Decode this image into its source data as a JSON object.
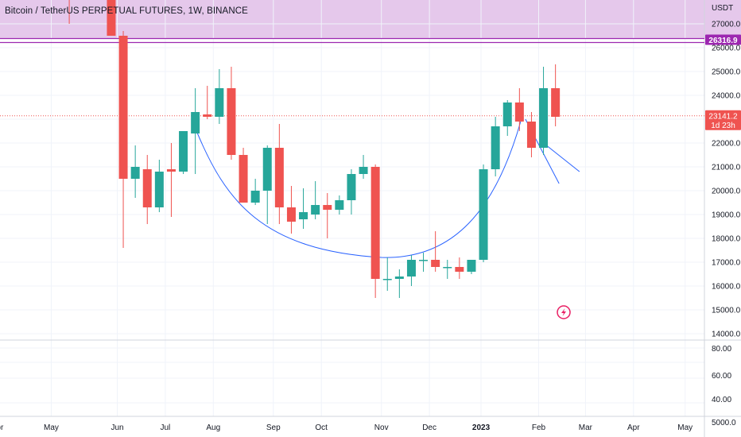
{
  "chart_data": {
    "type": "candlestick",
    "title": "Bitcoin / TetherUS PERPETUAL FUTURES, 1W, BINANCE",
    "currency_label": "USDT",
    "price_axis_ticks": [
      27000,
      26000,
      25000,
      24000,
      23000,
      22000,
      21000,
      20000,
      19000,
      18000,
      17000,
      16000,
      15000,
      14000
    ],
    "price_axis_tick_labels": [
      "27000.0",
      "26000.0",
      "25000.0",
      "24000.0",
      "23000.0",
      "22000.0",
      "21000.0",
      "20000.0",
      "19000.0",
      "18000.0",
      "17000.0",
      "16000.0",
      "15000.0",
      "14000.0"
    ],
    "ylim": [
      13700,
      28200
    ],
    "indicator_axis_ticks": [
      "80.00",
      "60.00",
      "40.00",
      "5000.0"
    ],
    "x_axis_labels": [
      {
        "label": "Apr",
        "week": -10
      },
      {
        "label": "May",
        "week": -5.5
      },
      {
        "label": "Jun",
        "week": 0
      },
      {
        "label": "Jul",
        "week": 4
      },
      {
        "label": "Aug",
        "week": 8
      },
      {
        "label": "Sep",
        "week": 13
      },
      {
        "label": "Oct",
        "week": 17
      },
      {
        "label": "Nov",
        "week": 22
      },
      {
        "label": "Dec",
        "week": 26
      },
      {
        "label": "2023",
        "week": 30.3,
        "bold": true
      },
      {
        "label": "Feb",
        "week": 35.1
      },
      {
        "label": "Mar",
        "week": 39
      },
      {
        "label": "Apr",
        "week": 43
      },
      {
        "label": "May",
        "week": 47.3
      }
    ],
    "candles": [
      {
        "week": -4,
        "open": 29500,
        "high": 29700,
        "low": 27000,
        "close": 28500
      },
      {
        "week": -0.5,
        "open": 31500,
        "high": 31800,
        "low": 26500,
        "close": 26500
      },
      {
        "week": 0.5,
        "open": 26500,
        "high": 26700,
        "low": 17600,
        "close": 20500
      },
      {
        "week": 1.5,
        "open": 20500,
        "high": 21900,
        "low": 19700,
        "close": 21000
      },
      {
        "week": 2.5,
        "open": 20900,
        "high": 21500,
        "low": 18600,
        "close": 19300
      },
      {
        "week": 3.5,
        "open": 19300,
        "high": 21300,
        "low": 19100,
        "close": 20800
      },
      {
        "week": 4.5,
        "open": 20900,
        "high": 22000,
        "low": 18900,
        "close": 20800
      },
      {
        "week": 5.5,
        "open": 20800,
        "high": 22500,
        "low": 20700,
        "close": 22500
      },
      {
        "week": 6.5,
        "open": 22400,
        "high": 24300,
        "low": 20700,
        "close": 23300
      },
      {
        "week": 7.5,
        "open": 23200,
        "high": 24400,
        "low": 23000,
        "close": 23100
      },
      {
        "week": 8.5,
        "open": 23100,
        "high": 25100,
        "low": 22800,
        "close": 24300
      },
      {
        "week": 9.5,
        "open": 24300,
        "high": 25200,
        "low": 21300,
        "close": 21500
      },
      {
        "week": 10.5,
        "open": 21500,
        "high": 21800,
        "low": 19500,
        "close": 19500
      },
      {
        "week": 11.5,
        "open": 19500,
        "high": 20500,
        "low": 19400,
        "close": 20000
      },
      {
        "week": 12.5,
        "open": 20000,
        "high": 21900,
        "low": 18600,
        "close": 21800
      },
      {
        "week": 13.5,
        "open": 21800,
        "high": 22800,
        "low": 18600,
        "close": 19300
      },
      {
        "week": 14.5,
        "open": 19300,
        "high": 20200,
        "low": 18200,
        "close": 18700
      },
      {
        "week": 15.5,
        "open": 18800,
        "high": 20100,
        "low": 18400,
        "close": 19100
      },
      {
        "week": 16.5,
        "open": 19000,
        "high": 20400,
        "low": 18800,
        "close": 19400
      },
      {
        "week": 17.5,
        "open": 19400,
        "high": 19900,
        "low": 18000,
        "close": 19200
      },
      {
        "week": 18.5,
        "open": 19200,
        "high": 19800,
        "low": 19000,
        "close": 19600
      },
      {
        "week": 19.5,
        "open": 19600,
        "high": 20900,
        "low": 19000,
        "close": 20700
      },
      {
        "week": 20.5,
        "open": 20700,
        "high": 21500,
        "low": 20500,
        "close": 21000
      },
      {
        "week": 21.5,
        "open": 21000,
        "high": 21100,
        "low": 15500,
        "close": 16300
      },
      {
        "week": 22.5,
        "open": 16300,
        "high": 17200,
        "low": 15800,
        "close": 16300
      },
      {
        "week": 23.5,
        "open": 16300,
        "high": 16700,
        "low": 15500,
        "close": 16400
      },
      {
        "week": 24.5,
        "open": 16400,
        "high": 17300,
        "low": 16000,
        "close": 17100
      },
      {
        "week": 25.5,
        "open": 17100,
        "high": 17400,
        "low": 16600,
        "close": 17100
      },
      {
        "week": 26.5,
        "open": 17100,
        "high": 18300,
        "low": 16600,
        "close": 16800
      },
      {
        "week": 27.5,
        "open": 16800,
        "high": 17100,
        "low": 16300,
        "close": 16800
      },
      {
        "week": 28.5,
        "open": 16800,
        "high": 17200,
        "low": 16300,
        "close": 16600
      },
      {
        "week": 29.5,
        "open": 16600,
        "high": 17100,
        "low": 16500,
        "close": 17100
      },
      {
        "week": 30.5,
        "open": 17100,
        "high": 21100,
        "low": 17000,
        "close": 20900
      },
      {
        "week": 31.5,
        "open": 20900,
        "high": 23100,
        "low": 20600,
        "close": 22700
      },
      {
        "week": 32.5,
        "open": 22700,
        "high": 23800,
        "low": 22300,
        "close": 23700
      },
      {
        "week": 33.5,
        "open": 23700,
        "high": 24300,
        "low": 22500,
        "close": 22900
      },
      {
        "week": 34.5,
        "open": 22900,
        "high": 23300,
        "low": 21400,
        "close": 21800
      },
      {
        "week": 35.5,
        "open": 21800,
        "high": 25200,
        "low": 21500,
        "close": 24300
      },
      {
        "week": 36.5,
        "open": 24300,
        "high": 25300,
        "low": 22700,
        "close": 23100
      }
    ],
    "colors": {
      "up": "#26a69a",
      "down": "#ef5350",
      "cup_line": "#2962ff",
      "resistance": "#9c27b0",
      "zone_fill": "#e1bee7"
    },
    "resistance_price": 26316.9,
    "resistance_label": "26316.9",
    "current_price_label": "23141.2",
    "countdown_label": "1d 23h",
    "current_price": 23141.2
  }
}
